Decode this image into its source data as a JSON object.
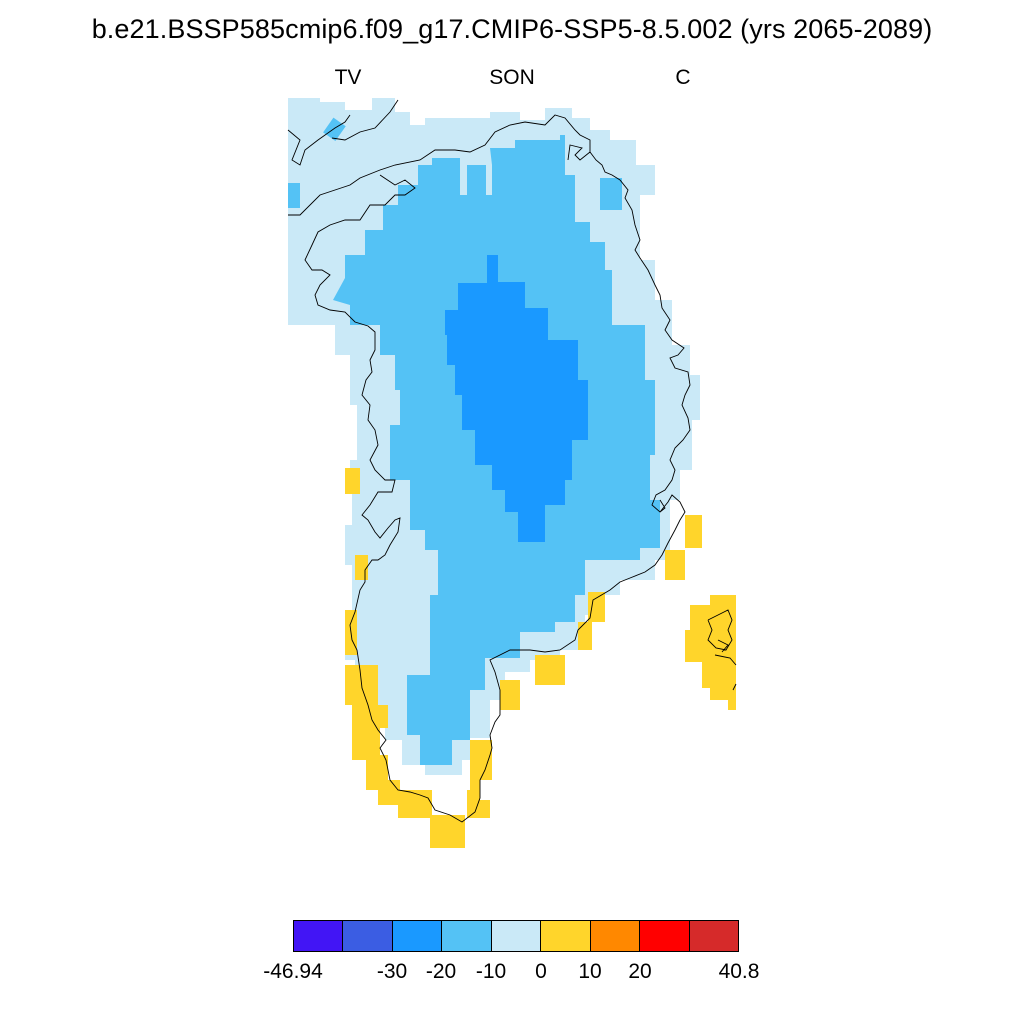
{
  "title": "b.e21.BSSP585cmip6.f09_g17.CMIP6-SSP5-8.5.002 (yrs 2065-2089)",
  "subtitles": {
    "left": "TV",
    "center": "SON",
    "right": "C"
  },
  "colors": {
    "c_n40": "#4215f5",
    "c_n30": "#3b5de3",
    "c_n20": "#1a99ff",
    "c_n10": "#54c2f5",
    "c_0": "#cae9f7",
    "c_10": "#ffd52b",
    "c_20": "#ff8800",
    "c_30": "#ff0000",
    "c_40": "#d62a2a",
    "coast": "#000000"
  },
  "colorbar": {
    "bins": [
      "c_n40",
      "c_n30",
      "c_n20",
      "c_n10",
      "c_0",
      "c_10",
      "c_20",
      "c_30",
      "c_40"
    ],
    "labels": [
      "-46.94",
      "-30",
      "-20",
      "-10",
      "0",
      "10",
      "20",
      "40.8"
    ]
  }
}
